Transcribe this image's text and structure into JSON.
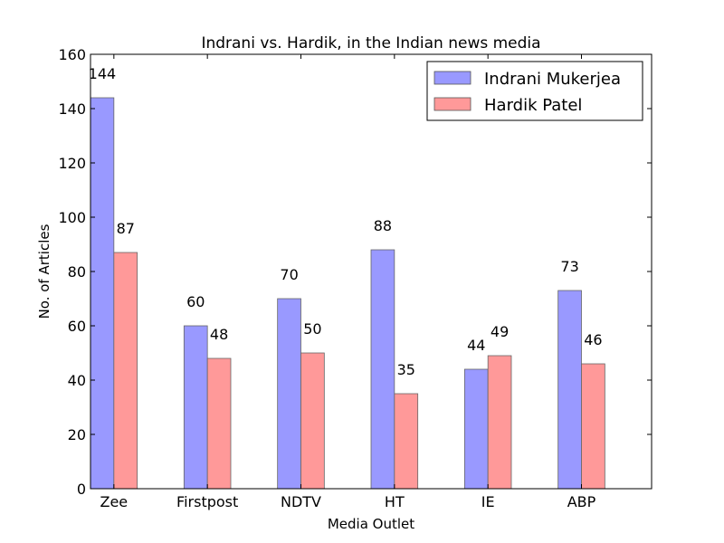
{
  "chart_data": {
    "type": "bar",
    "title": "Indrani vs. Hardik, in the Indian news media",
    "xlabel": "Media Outlet",
    "ylabel": "No. of Articles",
    "ylim": [
      0,
      160
    ],
    "yticks": [
      0,
      20,
      40,
      60,
      80,
      100,
      120,
      140,
      160
    ],
    "categories": [
      "Zee",
      "Firstpost",
      "NDTV",
      "HT",
      "IE",
      "ABP"
    ],
    "series": [
      {
        "name": "Indrani Mukerjea",
        "values": [
          144,
          60,
          70,
          88,
          44,
          73
        ],
        "color": "#9999ff"
      },
      {
        "name": "Hardik Patel",
        "values": [
          87,
          48,
          50,
          35,
          49,
          46
        ],
        "color": "#ff9999"
      }
    ],
    "legend_position": "top-right",
    "grid": false
  }
}
